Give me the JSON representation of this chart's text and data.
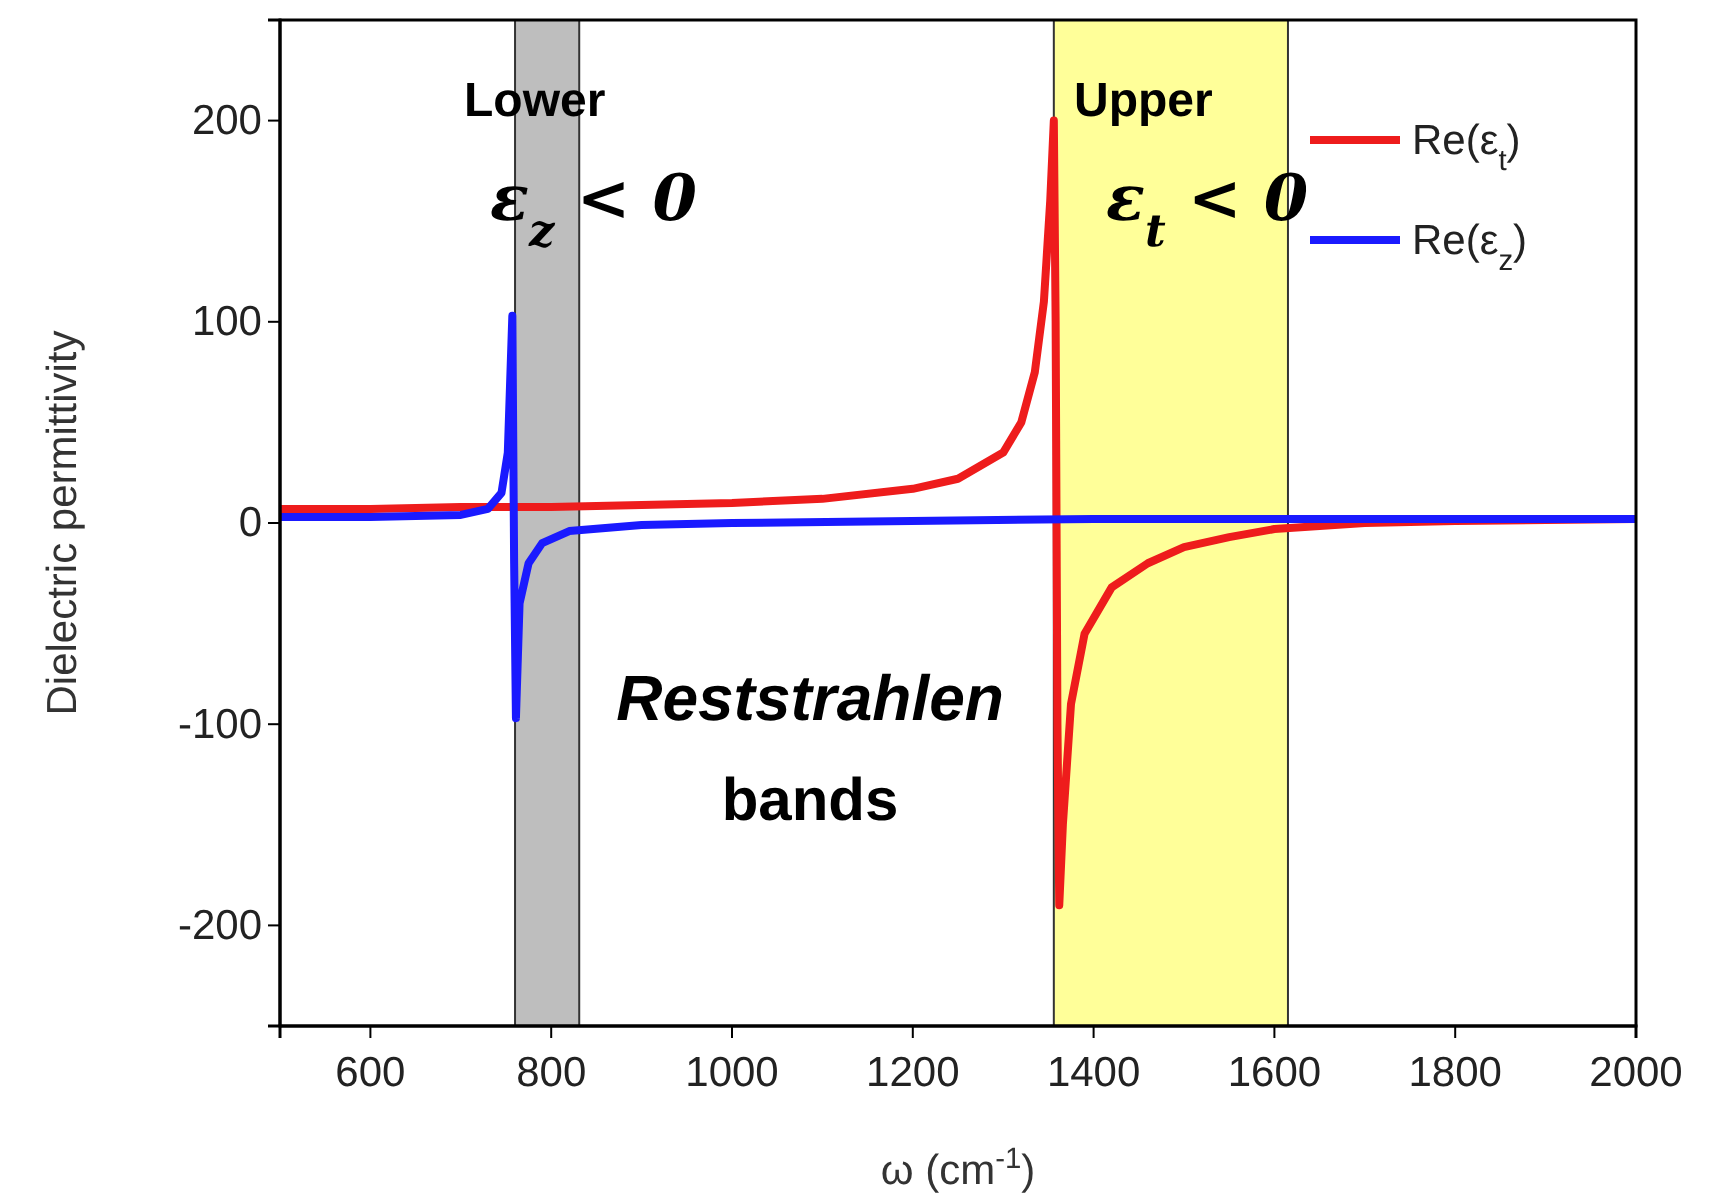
{
  "chart_data": {
    "type": "line",
    "xlabel": "ω (cm$^{-1}$)",
    "ylabel": "Dielectric permittivity",
    "xlim": [
      500,
      2000
    ],
    "xticks": [
      600,
      800,
      1000,
      1200,
      1400,
      1600,
      1800,
      2000
    ],
    "ylim": [
      -250,
      250
    ],
    "yticks": [
      -200,
      -100,
      0,
      100,
      200
    ],
    "grid": false,
    "legend": "top right",
    "marker": "none",
    "line_style": "solid",
    "series": [
      {
        "name": "Re(ε$_{t}$)",
        "color": "#ee1c1c",
        "x": [
          500,
          600,
          700,
          800,
          900,
          1000,
          1100,
          1200,
          1250,
          1300,
          1320,
          1335,
          1345,
          1352,
          1356,
          1358,
          1360,
          1362,
          1366,
          1375,
          1390,
          1420,
          1460,
          1500,
          1550,
          1600,
          1700,
          1800,
          2000
        ],
        "values": [
          7,
          7,
          8,
          8,
          9,
          10,
          12,
          17,
          22,
          35,
          50,
          75,
          110,
          160,
          200,
          100,
          -100,
          -190,
          -150,
          -90,
          -55,
          -32,
          -20,
          -12,
          -7,
          -3,
          0,
          1,
          2
        ]
      },
      {
        "name": "Re(ε$_{z}$)",
        "color": "#1a1aff",
        "x": [
          500,
          600,
          700,
          730,
          745,
          752,
          757,
          759,
          761,
          765,
          775,
          790,
          820,
          900,
          1000,
          1400,
          2000
        ],
        "values": [
          3,
          3,
          4,
          7,
          15,
          35,
          103,
          -20,
          -97,
          -40,
          -20,
          -10,
          -4,
          -1,
          0,
          2,
          2
        ]
      }
    ],
    "bands": [
      {
        "axis": "x",
        "from": 760,
        "to": 831,
        "color": "#bebebe"
      },
      {
        "axis": "x",
        "from": 1356,
        "to": 1615,
        "color": "#ffff99"
      }
    ],
    "annotations": [
      "Lower",
      "ε$_{z}$ < 0",
      "Upper",
      "ε$_{t}$ < 0",
      "Reststrahlen",
      "bands"
    ]
  }
}
